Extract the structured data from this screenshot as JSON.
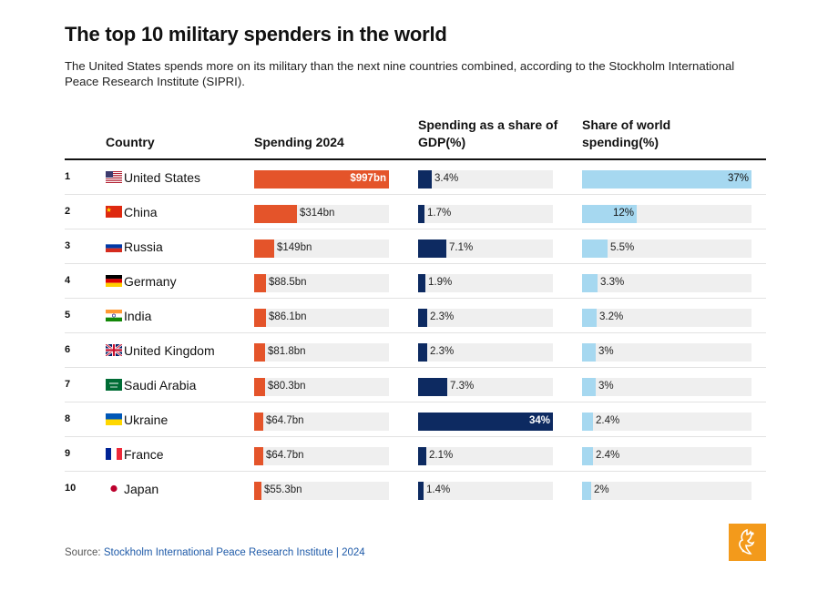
{
  "title": "The top 10 military spenders in the world",
  "subtitle": "The United States spends more on its military than the next nine countries combined, according to the Stockholm International Peace Research Institute (SIPRI).",
  "headers": {
    "country": "Country",
    "spending": "Spending 2024",
    "gdp": "Spending as a share of GDP(%)",
    "world": "Share of world spending(%)"
  },
  "source": {
    "prefix": "Source: ",
    "text": "Stockholm International Peace Research Institute | 2024"
  },
  "colors": {
    "spending": "#e4542a",
    "gdp": "#0d2a61",
    "world": "#a6d8f0",
    "track": "#efefef",
    "logo": "#f39a1b"
  },
  "chart_data": {
    "type": "table",
    "columns": [
      "Country",
      "Spending 2024",
      "Spending as a share of GDP(%)",
      "Share of world spending(%)"
    ],
    "rows": [
      {
        "rank": "1",
        "country": "United States",
        "flag": "us-flag-icon",
        "spending": 997,
        "spending_label": "$997bn",
        "gdp": 3.4,
        "gdp_label": "3.4%",
        "world": 37,
        "world_label": "37%"
      },
      {
        "rank": "2",
        "country": "China",
        "flag": "china-flag-icon",
        "spending": 314,
        "spending_label": "$314bn",
        "gdp": 1.7,
        "gdp_label": "1.7%",
        "world": 12,
        "world_label": "12%"
      },
      {
        "rank": "3",
        "country": "Russia",
        "flag": "russia-flag-icon",
        "spending": 149,
        "spending_label": "$149bn",
        "gdp": 7.1,
        "gdp_label": "7.1%",
        "world": 5.5,
        "world_label": "5.5%"
      },
      {
        "rank": "4",
        "country": "Germany",
        "flag": "germany-flag-icon",
        "spending": 88.5,
        "spending_label": "$88.5bn",
        "gdp": 1.9,
        "gdp_label": "1.9%",
        "world": 3.3,
        "world_label": "3.3%"
      },
      {
        "rank": "5",
        "country": "India",
        "flag": "india-flag-icon",
        "spending": 86.1,
        "spending_label": "$86.1bn",
        "gdp": 2.3,
        "gdp_label": "2.3%",
        "world": 3.2,
        "world_label": "3.2%"
      },
      {
        "rank": "6",
        "country": "United Kingdom",
        "flag": "uk-flag-icon",
        "spending": 81.8,
        "spending_label": "$81.8bn",
        "gdp": 2.3,
        "gdp_label": "2.3%",
        "world": 3,
        "world_label": "3%"
      },
      {
        "rank": "7",
        "country": "Saudi Arabia",
        "flag": "saudi-arabia-flag-icon",
        "spending": 80.3,
        "spending_label": "$80.3bn",
        "gdp": 7.3,
        "gdp_label": "7.3%",
        "world": 3,
        "world_label": "3%"
      },
      {
        "rank": "8",
        "country": "Ukraine",
        "flag": "ukraine-flag-icon",
        "spending": 64.7,
        "spending_label": "$64.7bn",
        "gdp": 34,
        "gdp_label": "34%",
        "world": 2.4,
        "world_label": "2.4%"
      },
      {
        "rank": "9",
        "country": "France",
        "flag": "france-flag-icon",
        "spending": 64.7,
        "spending_label": "$64.7bn",
        "gdp": 2.1,
        "gdp_label": "2.1%",
        "world": 2.4,
        "world_label": "2.4%"
      },
      {
        "rank": "10",
        "country": "Japan",
        "flag": "japan-flag-icon",
        "spending": 55.3,
        "spending_label": "$55.3bn",
        "gdp": 1.4,
        "gdp_label": "1.4%",
        "world": 2,
        "world_label": "2%"
      }
    ],
    "scales": {
      "spending_max": 997,
      "gdp_max": 34,
      "world_max": 37
    }
  }
}
